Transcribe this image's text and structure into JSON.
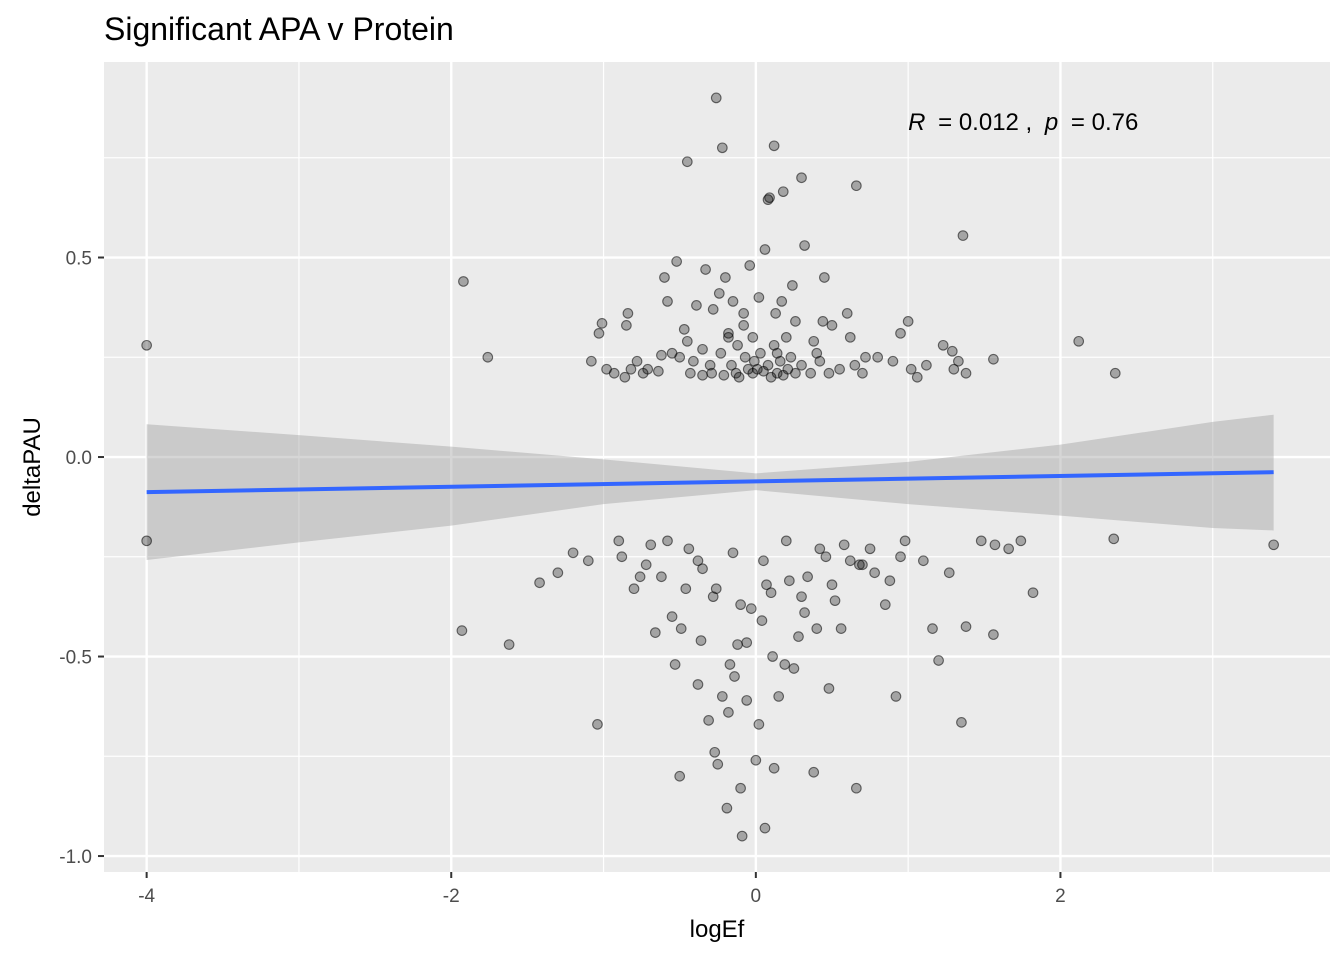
{
  "chart_data": {
    "type": "scatter",
    "title": "Significant APA v Protein",
    "xlabel": "logEf",
    "ylabel": "deltaPAU",
    "xlim": [
      -4.28,
      3.77
    ],
    "ylim": [
      -1.04,
      0.99
    ],
    "x_ticks": [
      {
        "v": -4,
        "label": "-4"
      },
      {
        "v": -2,
        "label": "-2"
      },
      {
        "v": 0,
        "label": "0"
      },
      {
        "v": 2,
        "label": "2"
      }
    ],
    "y_ticks": [
      {
        "v": 0.5,
        "label": "0.5"
      },
      {
        "v": 0.0,
        "label": "0.0"
      },
      {
        "v": -0.5,
        "label": "-0.5"
      },
      {
        "v": -1.0,
        "label": "-1.0"
      }
    ],
    "grid": true,
    "background_color": "#ebebeb",
    "grid_color": "#ffffff",
    "point_color": "#000000",
    "fit_line_color": "#3366ff",
    "ribbon_color": "#999999",
    "annotation": {
      "r_label": "R",
      "r_value": "= 0.012 ,",
      "p_label": "p",
      "p_value": "= 0.76",
      "x": 1.0,
      "y": 0.84
    },
    "fit_line": {
      "x": [
        -4.0,
        3.4
      ],
      "y": [
        -0.088,
        -0.038
      ]
    },
    "confidence_band": {
      "x": [
        -4.0,
        -3.0,
        -2.0,
        -1.0,
        0.0,
        1.0,
        2.0,
        3.0,
        3.4
      ],
      "upper": [
        0.082,
        0.055,
        0.026,
        -0.006,
        -0.041,
        -0.012,
        0.031,
        0.088,
        0.106
      ],
      "lower": [
        -0.258,
        -0.214,
        -0.172,
        -0.118,
        -0.083,
        -0.118,
        -0.147,
        -0.178,
        -0.184
      ]
    },
    "series": [
      {
        "points": [
          [
            -4.0,
            0.28
          ],
          [
            -4.0,
            -0.21
          ],
          [
            -1.92,
            0.44
          ],
          [
            -1.76,
            0.25
          ],
          [
            -1.93,
            -0.435
          ],
          [
            -1.62,
            -0.47
          ],
          [
            -1.42,
            -0.315
          ],
          [
            -1.3,
            -0.29
          ],
          [
            -1.2,
            -0.24
          ],
          [
            -1.08,
            0.24
          ],
          [
            -1.04,
            -0.67
          ],
          [
            -1.03,
            0.31
          ],
          [
            -1.01,
            0.335
          ],
          [
            -0.98,
            0.22
          ],
          [
            -0.93,
            0.21
          ],
          [
            -0.9,
            -0.21
          ],
          [
            -0.86,
            0.2
          ],
          [
            -0.85,
            0.33
          ],
          [
            -0.84,
            0.36
          ],
          [
            -0.82,
            0.22
          ],
          [
            -0.8,
            -0.33
          ],
          [
            -0.78,
            0.24
          ],
          [
            -0.76,
            -0.3
          ],
          [
            -0.74,
            0.21
          ],
          [
            -0.71,
            0.22
          ],
          [
            -0.69,
            -0.22
          ],
          [
            -0.66,
            -0.44
          ],
          [
            -0.64,
            0.215
          ],
          [
            -0.62,
            0.255
          ],
          [
            -0.6,
            0.45
          ],
          [
            -0.58,
            0.39
          ],
          [
            -0.55,
            -0.4
          ],
          [
            -0.53,
            -0.52
          ],
          [
            -0.52,
            0.49
          ],
          [
            -0.5,
            0.25
          ],
          [
            -0.49,
            -0.43
          ],
          [
            -0.47,
            0.32
          ],
          [
            -0.45,
            0.29
          ],
          [
            -0.44,
            -0.23
          ],
          [
            -0.43,
            0.21
          ],
          [
            -0.41,
            0.24
          ],
          [
            -0.39,
            0.38
          ],
          [
            -0.38,
            -0.26
          ],
          [
            -0.36,
            -0.46
          ],
          [
            -0.35,
            0.205
          ],
          [
            -0.33,
            0.47
          ],
          [
            -0.31,
            -0.66
          ],
          [
            -0.3,
            0.23
          ],
          [
            -0.29,
            0.21
          ],
          [
            -0.28,
            0.37
          ],
          [
            -0.27,
            -0.74
          ],
          [
            -0.26,
            -0.33
          ],
          [
            -0.24,
            0.41
          ],
          [
            -0.23,
            0.26
          ],
          [
            -0.22,
            -0.6
          ],
          [
            -0.21,
            0.205
          ],
          [
            -0.2,
            0.45
          ],
          [
            -0.19,
            -0.88
          ],
          [
            -0.18,
            0.3
          ],
          [
            -0.17,
            -0.52
          ],
          [
            -0.16,
            0.23
          ],
          [
            -0.15,
            0.39
          ],
          [
            -0.14,
            -0.55
          ],
          [
            -0.13,
            0.21
          ],
          [
            -0.12,
            0.28
          ],
          [
            -0.11,
            0.2
          ],
          [
            -0.1,
            -0.83
          ],
          [
            -0.09,
            -0.95
          ],
          [
            -0.08,
            0.33
          ],
          [
            -0.07,
            0.25
          ],
          [
            -0.06,
            -0.465
          ],
          [
            -0.05,
            0.22
          ],
          [
            -0.04,
            0.48
          ],
          [
            -0.03,
            -0.38
          ],
          [
            -0.02,
            0.21
          ],
          [
            -0.01,
            0.24
          ],
          [
            0.0,
            -0.76
          ],
          [
            0.01,
            0.22
          ],
          [
            0.02,
            0.4
          ],
          [
            0.03,
            0.26
          ],
          [
            0.04,
            -0.41
          ],
          [
            0.05,
            0.215
          ],
          [
            0.06,
            0.52
          ],
          [
            0.07,
            -0.32
          ],
          [
            0.08,
            0.23
          ],
          [
            0.09,
            0.65
          ],
          [
            0.1,
            0.2
          ],
          [
            0.11,
            -0.5
          ],
          [
            0.12,
            0.28
          ],
          [
            0.13,
            0.36
          ],
          [
            0.14,
            0.21
          ],
          [
            0.15,
            -0.6
          ],
          [
            0.16,
            0.24
          ],
          [
            0.17,
            0.39
          ],
          [
            0.18,
            0.205
          ],
          [
            0.19,
            -0.52
          ],
          [
            0.2,
            0.3
          ],
          [
            0.21,
            0.22
          ],
          [
            0.22,
            -0.31
          ],
          [
            0.23,
            0.25
          ],
          [
            0.24,
            0.43
          ],
          [
            0.26,
            0.21
          ],
          [
            0.28,
            -0.45
          ],
          [
            0.3,
            0.23
          ],
          [
            0.32,
            0.53
          ],
          [
            0.34,
            -0.3
          ],
          [
            0.36,
            0.21
          ],
          [
            0.38,
            0.29
          ],
          [
            0.4,
            -0.43
          ],
          [
            0.42,
            0.24
          ],
          [
            0.44,
            0.34
          ],
          [
            0.46,
            -0.25
          ],
          [
            0.48,
            0.21
          ],
          [
            0.5,
            0.33
          ],
          [
            0.52,
            -0.36
          ],
          [
            0.55,
            0.22
          ],
          [
            0.58,
            -0.22
          ],
          [
            0.6,
            0.36
          ],
          [
            0.62,
            -0.26
          ],
          [
            0.65,
            0.23
          ],
          [
            0.68,
            -0.27
          ],
          [
            0.7,
            0.21
          ],
          [
            0.75,
            -0.23
          ],
          [
            0.8,
            0.25
          ],
          [
            0.85,
            -0.37
          ],
          [
            0.9,
            0.24
          ],
          [
            0.92,
            -0.6
          ],
          [
            0.95,
            0.31
          ],
          [
            0.98,
            -0.21
          ],
          [
            1.0,
            0.34
          ],
          [
            1.02,
            0.22
          ],
          [
            1.06,
            0.2
          ],
          [
            1.1,
            -0.26
          ],
          [
            1.12,
            0.23
          ],
          [
            1.16,
            -0.43
          ],
          [
            1.2,
            -0.51
          ],
          [
            1.23,
            0.28
          ],
          [
            1.27,
            -0.29
          ],
          [
            1.29,
            0.265
          ],
          [
            1.3,
            0.22
          ],
          [
            1.33,
            0.24
          ],
          [
            1.35,
            -0.665
          ],
          [
            1.36,
            0.555
          ],
          [
            1.38,
            0.21
          ],
          [
            1.38,
            -0.425
          ],
          [
            1.48,
            -0.21
          ],
          [
            1.56,
            -0.445
          ],
          [
            1.56,
            0.245
          ],
          [
            1.57,
            -0.22
          ],
          [
            1.66,
            -0.23
          ],
          [
            1.74,
            -0.21
          ],
          [
            1.82,
            -0.34
          ],
          [
            2.12,
            0.29
          ],
          [
            2.35,
            -0.205
          ],
          [
            2.36,
            0.21
          ],
          [
            3.4,
            -0.22
          ],
          [
            -0.26,
            0.9
          ],
          [
            -0.22,
            0.775
          ],
          [
            -0.45,
            0.74
          ],
          [
            0.12,
            0.78
          ],
          [
            0.3,
            0.7
          ],
          [
            0.66,
            0.68
          ],
          [
            0.18,
            0.665
          ],
          [
            0.08,
            0.645
          ],
          [
            -0.38,
            -0.57
          ],
          [
            -0.5,
            -0.8
          ],
          [
            -0.25,
            -0.77
          ],
          [
            -0.18,
            -0.64
          ],
          [
            -0.06,
            -0.61
          ],
          [
            0.02,
            -0.67
          ],
          [
            0.12,
            -0.78
          ],
          [
            0.38,
            -0.79
          ],
          [
            0.66,
            -0.83
          ],
          [
            0.06,
            -0.93
          ],
          [
            -0.12,
            -0.47
          ],
          [
            0.25,
            -0.53
          ],
          [
            0.48,
            -0.58
          ],
          [
            0.56,
            -0.43
          ],
          [
            0.32,
            -0.39
          ],
          [
            -0.72,
            -0.27
          ],
          [
            -0.88,
            -0.25
          ],
          [
            -1.1,
            -0.26
          ],
          [
            -0.58,
            -0.21
          ],
          [
            -0.35,
            -0.28
          ],
          [
            -0.15,
            -0.24
          ],
          [
            0.05,
            -0.26
          ],
          [
            0.2,
            -0.21
          ],
          [
            0.42,
            -0.23
          ],
          [
            0.7,
            -0.27
          ],
          [
            0.3,
            -0.35
          ],
          [
            0.1,
            -0.34
          ],
          [
            -0.1,
            -0.37
          ],
          [
            -0.28,
            -0.35
          ],
          [
            -0.46,
            -0.33
          ],
          [
            -0.62,
            -0.3
          ],
          [
            0.5,
            -0.32
          ],
          [
            0.78,
            -0.29
          ],
          [
            0.88,
            -0.31
          ],
          [
            0.95,
            -0.25
          ],
          [
            0.62,
            0.3
          ],
          [
            -0.18,
            0.31
          ],
          [
            -0.02,
            0.3
          ],
          [
            0.14,
            0.26
          ],
          [
            0.26,
            0.34
          ],
          [
            -0.35,
            0.27
          ],
          [
            -0.55,
            0.26
          ],
          [
            0.4,
            0.26
          ],
          [
            0.72,
            0.25
          ],
          [
            0.45,
            0.45
          ],
          [
            -0.08,
            0.36
          ]
        ]
      }
    ]
  }
}
